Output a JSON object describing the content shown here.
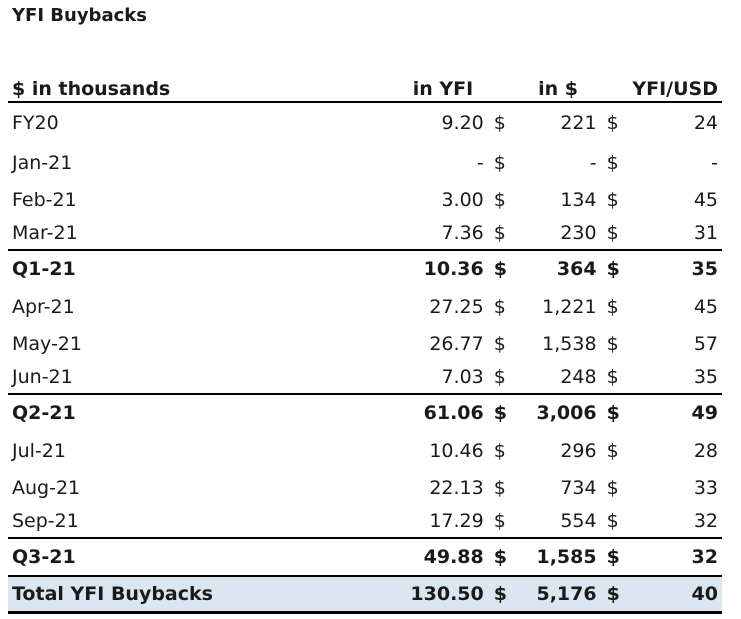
{
  "title": "YFI Buybacks",
  "header": {
    "label": "$ in thousands",
    "col_yfi": "in YFI",
    "col_usd": "in $",
    "col_rate": "YFI/USD",
    "dollar": "$"
  },
  "rows": [
    {
      "label": "FY20",
      "yfi": "9.20",
      "usd": "221",
      "rate": "24",
      "kind": "gap"
    },
    {
      "label": "Jan-21",
      "yfi": "-",
      "usd": "-",
      "rate": "-",
      "kind": "gap"
    },
    {
      "label": "Feb-21",
      "yfi": "3.00",
      "usd": "134",
      "rate": "45",
      "kind": "row"
    },
    {
      "label": "Mar-21",
      "yfi": "7.36",
      "usd": "230",
      "rate": "31",
      "kind": "row"
    },
    {
      "label": "Q1-21",
      "yfi": "10.36",
      "usd": "364",
      "rate": "35",
      "kind": "sub"
    },
    {
      "label": "Apr-21",
      "yfi": "27.25",
      "usd": "1,221",
      "rate": "45",
      "kind": "gap"
    },
    {
      "label": "May-21",
      "yfi": "26.77",
      "usd": "1,538",
      "rate": "57",
      "kind": "row"
    },
    {
      "label": "Jun-21",
      "yfi": "7.03",
      "usd": "248",
      "rate": "35",
      "kind": "row"
    },
    {
      "label": "Q2-21",
      "yfi": "61.06",
      "usd": "3,006",
      "rate": "49",
      "kind": "sub"
    },
    {
      "label": "Jul-21",
      "yfi": "10.46",
      "usd": "296",
      "rate": "28",
      "kind": "gap"
    },
    {
      "label": "Aug-21",
      "yfi": "22.13",
      "usd": "734",
      "rate": "33",
      "kind": "row"
    },
    {
      "label": "Sep-21",
      "yfi": "17.29",
      "usd": "554",
      "rate": "32",
      "kind": "row"
    },
    {
      "label": "Q3-21",
      "yfi": "49.88",
      "usd": "1,585",
      "rate": "32",
      "kind": "sub"
    }
  ],
  "total": {
    "label": "Total YFI Buybacks",
    "yfi": "130.50",
    "usd": "5,176",
    "rate": "40"
  },
  "colors": {
    "total_fill": "#dce6f1",
    "rule": "#000000"
  }
}
